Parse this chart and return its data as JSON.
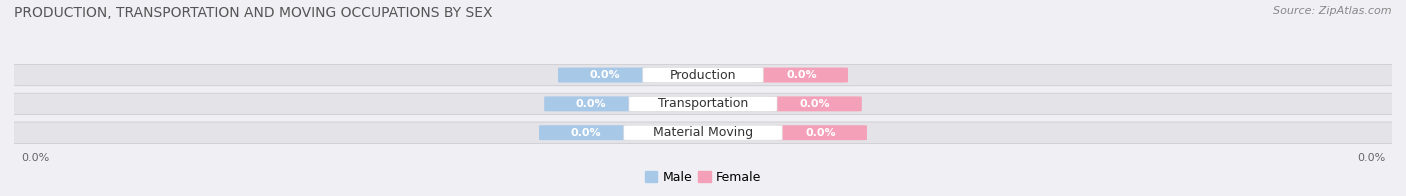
{
  "title": "PRODUCTION, TRANSPORTATION AND MOVING OCCUPATIONS BY SEX",
  "source": "Source: ZipAtlas.com",
  "categories": [
    "Production",
    "Transportation",
    "Material Moving"
  ],
  "male_values": [
    0.0,
    0.0,
    0.0
  ],
  "female_values": [
    0.0,
    0.0,
    0.0
  ],
  "male_color": "#a8c8e8",
  "female_color": "#f4a0b8",
  "bar_bg_color": "#e4e4e8",
  "figsize": [
    14.06,
    1.96
  ],
  "dpi": 100,
  "title_fontsize": 10,
  "source_fontsize": 8,
  "category_fontsize": 9,
  "value_fontsize": 8,
  "legend_fontsize": 9,
  "bg_color": "#f0f0f4"
}
